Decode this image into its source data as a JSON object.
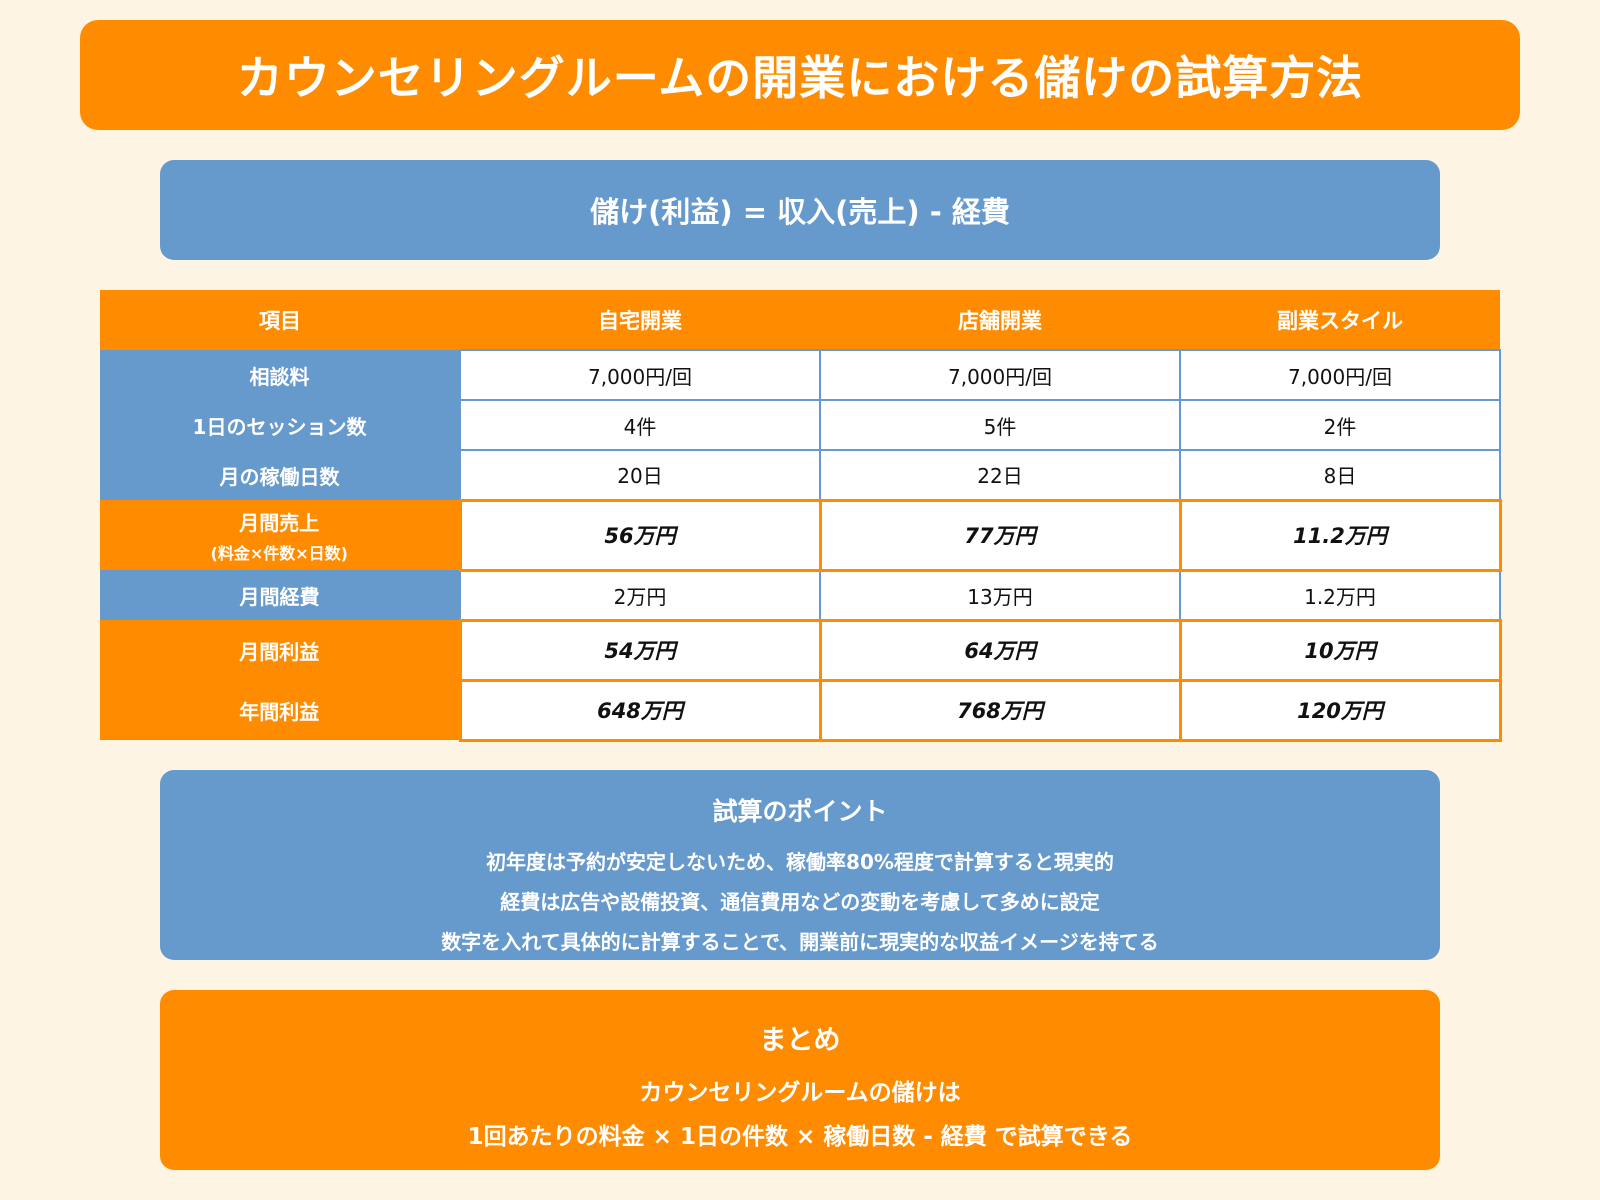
{
  "title": "カウンセリングルームの開業における儲けの試算方法",
  "formula": "儲け(利益) = 収入(売上) - 経費",
  "table": {
    "headers": [
      "項目",
      "自宅開業",
      "店舗開業",
      "副業スタイル"
    ],
    "rows": [
      {
        "label": "相談料",
        "sub": "",
        "style": "blue",
        "values": [
          "7,000円/回",
          "7,000円/回",
          "7,000円/回"
        ]
      },
      {
        "label": "1日のセッション数",
        "sub": "",
        "style": "blue",
        "values": [
          "4件",
          "5件",
          "2件"
        ]
      },
      {
        "label": "月の稼働日数",
        "sub": "",
        "style": "blue",
        "values": [
          "20日",
          "22日",
          "8日"
        ]
      },
      {
        "label": "月間売上",
        "sub": "(料金×件数×日数)",
        "style": "orange",
        "values": [
          "56万円",
          "77万円",
          "11.2万円"
        ]
      },
      {
        "label": "月間経費",
        "sub": "",
        "style": "blue",
        "values": [
          "2万円",
          "13万円",
          "1.2万円"
        ]
      },
      {
        "label": "月間利益",
        "sub": "",
        "style": "orange",
        "values": [
          "54万円",
          "64万円",
          "10万円"
        ]
      },
      {
        "label": "年間利益",
        "sub": "",
        "style": "orange",
        "values": [
          "648万円",
          "768万円",
          "120万円"
        ]
      }
    ]
  },
  "points": {
    "heading": "試算のポイント",
    "items": [
      "初年度は予約が安定しないため、稼働率80%程度で計算すると現実的",
      "経費は広告や設備投資、通信費用などの変動を考慮して多めに設定",
      "数字を入れて具体的に計算することで、開業前に現実的な収益イメージを持てる"
    ]
  },
  "summary": {
    "heading": "まとめ",
    "lines": [
      "カウンセリングルームの儲けは",
      "1回あたりの料金 × 1日の件数 × 稼働日数 - 経費 で試算できる"
    ]
  },
  "colors": {
    "background": "#FEF4E3",
    "orange": "#FF8C00",
    "blue": "#6699CC"
  }
}
